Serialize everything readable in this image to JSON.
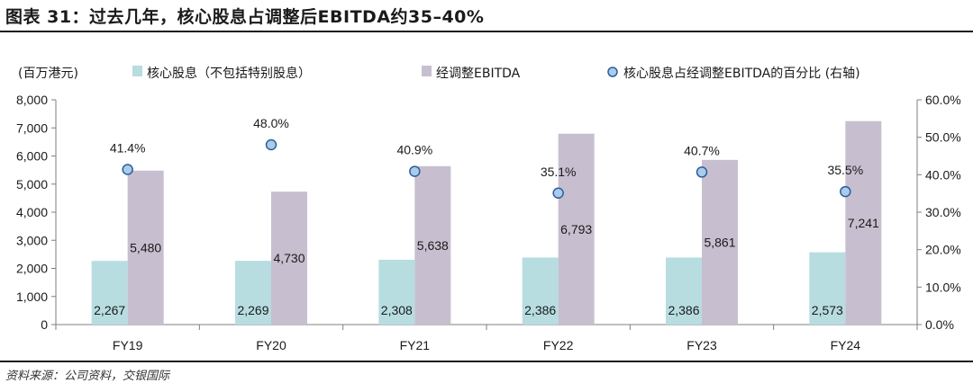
{
  "title": "图表 31：过去几年，核心股息占调整后EBITDA约35–40%",
  "source": "资料来源：公司资料，交银国际",
  "chart_data": {
    "type": "bar",
    "unit_label": "(百万港元)",
    "categories": [
      "FY19",
      "FY20",
      "FY21",
      "FY22",
      "FY23",
      "FY24"
    ],
    "series": [
      {
        "name": "核心股息（不包括特别股息）",
        "values": [
          2267,
          2269,
          2308,
          2386,
          2386,
          2573
        ],
        "color": "#b7dde1",
        "labels": [
          "2,267",
          "2,269",
          "2,308",
          "2,386",
          "2,386",
          "2,573"
        ]
      },
      {
        "name": "经调整EBITDA",
        "values": [
          5480,
          4730,
          5638,
          6793,
          5861,
          7241
        ],
        "color": "#c7bfcf",
        "labels": [
          "5,480",
          "4,730",
          "5,638",
          "6,793",
          "5,861",
          "7,241"
        ]
      },
      {
        "name": "核心股息占经调整EBITDA的百分比 (右轴)",
        "type": "scatter",
        "axis": "right",
        "values": [
          41.4,
          48.0,
          40.9,
          35.1,
          40.7,
          35.5
        ],
        "color": "#a9cbec",
        "labels": [
          "41.4%",
          "48.0%",
          "40.9%",
          "35.1%",
          "40.7%",
          "35.5%"
        ]
      }
    ],
    "left_axis": {
      "range": [
        0,
        8000
      ],
      "ticks": [
        0,
        1000,
        2000,
        3000,
        4000,
        5000,
        6000,
        7000,
        8000
      ],
      "tick_labels": [
        "0",
        "1,000",
        "2,000",
        "3,000",
        "4,000",
        "5,000",
        "6,000",
        "7,000",
        "8,000"
      ]
    },
    "right_axis": {
      "range": [
        0,
        60
      ],
      "ticks": [
        0,
        10,
        20,
        30,
        40,
        50,
        60
      ],
      "tick_labels": [
        "0.0%",
        "10.0%",
        "20.0%",
        "30.0%",
        "40.0%",
        "50.0%",
        "60.0%"
      ]
    },
    "grid": false,
    "legend_position": "top"
  }
}
